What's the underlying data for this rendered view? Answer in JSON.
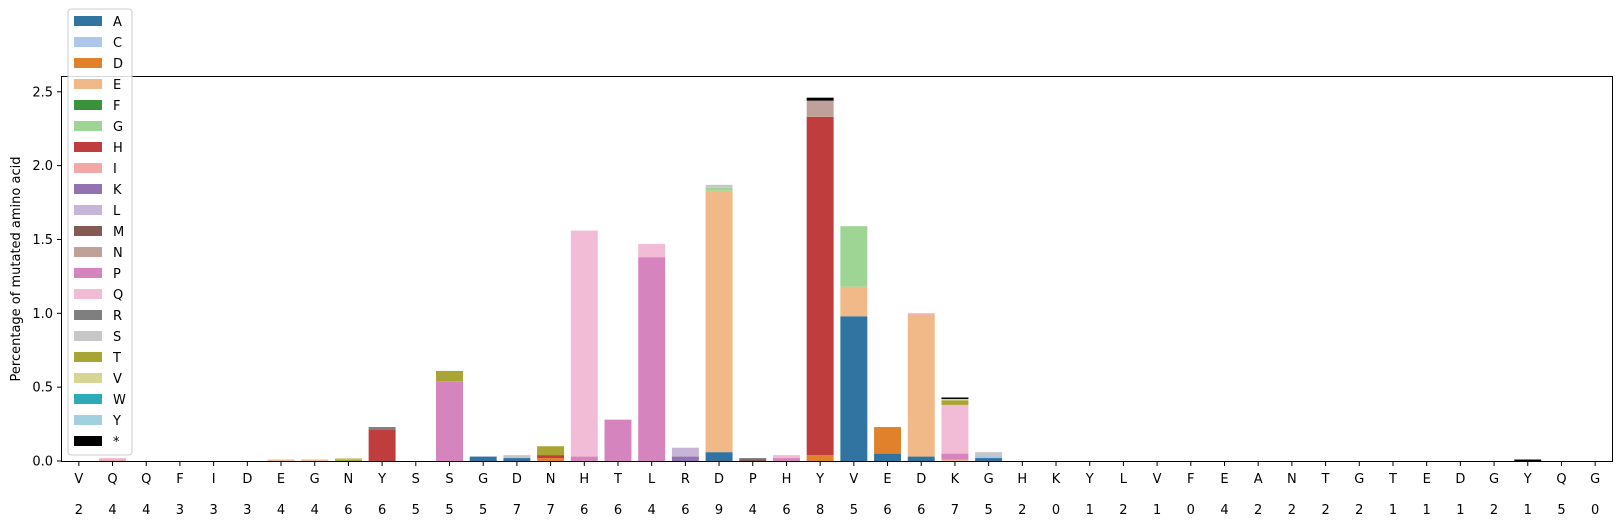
{
  "chart_data": {
    "type": "bar",
    "stacked": true,
    "title": "",
    "xlabel": "",
    "ylabel": "Percentage of mutated amino acid",
    "ylim": [
      0,
      2.6
    ],
    "yticks": [
      "0.0",
      "0.5",
      "1.0",
      "1.5",
      "2.0",
      "2.5"
    ],
    "grid": false,
    "legend_position": "upper-left",
    "categories": [
      "V",
      "Q",
      "Q",
      "F",
      "I",
      "D",
      "E",
      "G",
      "N",
      "Y",
      "S",
      "S",
      "G",
      "D",
      "N",
      "H",
      "T",
      "L",
      "R",
      "D",
      "P",
      "H",
      "Y",
      "V",
      "E",
      "D",
      "K",
      "G",
      "H",
      "K",
      "Y",
      "L",
      "V",
      "F",
      "E",
      "A",
      "N",
      "T",
      "G",
      "T",
      "E",
      "D",
      "G",
      "Y",
      "Q",
      "G"
    ],
    "category_counts": [
      "2",
      "4",
      "4",
      "3",
      "3",
      "3",
      "4",
      "4",
      "6",
      "6",
      "5",
      "5",
      "5",
      "7",
      "7",
      "6",
      "6",
      "4",
      "6",
      "9",
      "4",
      "6",
      "8",
      "5",
      "6",
      "6",
      "7",
      "5",
      "2",
      "0",
      "1",
      "2",
      "1",
      "0",
      "4",
      "2",
      "2",
      "2",
      "2",
      "1",
      "1",
      "1",
      "2",
      "1",
      "5",
      "0"
    ],
    "series": [
      {
        "name": "A",
        "color": "#3274a1",
        "values": {
          "12": 0.03,
          "13": 0.02,
          "19": 0.06,
          "23": 0.98,
          "24": 0.05,
          "25": 0.03,
          "27": 0.02
        }
      },
      {
        "name": "C",
        "color": "#aec7e8",
        "values": {
          "27": 0.02
        }
      },
      {
        "name": "D",
        "color": "#e1812c",
        "values": {
          "14": 0.02,
          "22": 0.04,
          "24": 0.18
        }
      },
      {
        "name": "E",
        "color": "#f0b987",
        "values": {
          "6": 0.01,
          "7": 0.01,
          "19": 1.77,
          "23": 0.2,
          "25": 0.96,
          "26": 0.01
        }
      },
      {
        "name": "F",
        "color": "#3a923a",
        "values": {}
      },
      {
        "name": "G",
        "color": "#9ed595",
        "values": {
          "19": 0.02,
          "23": 0.41
        }
      },
      {
        "name": "H",
        "color": "#c03d3e",
        "values": {
          "9": 0.21,
          "14": 0.02,
          "22": 2.29
        }
      },
      {
        "name": "I",
        "color": "#f4a7a7",
        "values": {
          "1": 0.01,
          "25": 0.01
        }
      },
      {
        "name": "K",
        "color": "#9372b2",
        "values": {
          "18": 0.03
        }
      },
      {
        "name": "L",
        "color": "#c6b5d6",
        "values": {
          "18": 0.06
        }
      },
      {
        "name": "M",
        "color": "#845b53",
        "values": {
          "20": 0.01
        }
      },
      {
        "name": "N",
        "color": "#c0a19a",
        "values": {
          "22": 0.11
        }
      },
      {
        "name": "P",
        "color": "#d684bd",
        "values": {
          "11": 0.54,
          "15": 0.03,
          "16": 0.28,
          "17": 1.38,
          "21": 0.02,
          "26": 0.04
        }
      },
      {
        "name": "Q",
        "color": "#f2bcd6",
        "values": {
          "1": 0.01,
          "15": 1.53,
          "17": 0.09,
          "21": 0.02,
          "26": 0.33
        }
      },
      {
        "name": "R",
        "color": "#7f7f7f",
        "values": {
          "9": 0.02,
          "20": 0.01
        }
      },
      {
        "name": "S",
        "color": "#c7c7c7",
        "values": {
          "13": 0.02,
          "19": 0.02,
          "27": 0.02
        }
      },
      {
        "name": "T",
        "color": "#a8a534",
        "values": {
          "8": 0.01,
          "11": 0.07,
          "14": 0.06,
          "26": 0.03
        }
      },
      {
        "name": "V",
        "color": "#d6d596",
        "values": {
          "8": 0.01,
          "26": 0.01
        }
      },
      {
        "name": "W",
        "color": "#2eabb8",
        "values": {}
      },
      {
        "name": "Y",
        "color": "#a1d0de",
        "values": {}
      },
      {
        "name": "*",
        "color": "#000000",
        "values": {
          "22": 0.02,
          "26": 0.01,
          "43": 0.01
        }
      }
    ]
  }
}
